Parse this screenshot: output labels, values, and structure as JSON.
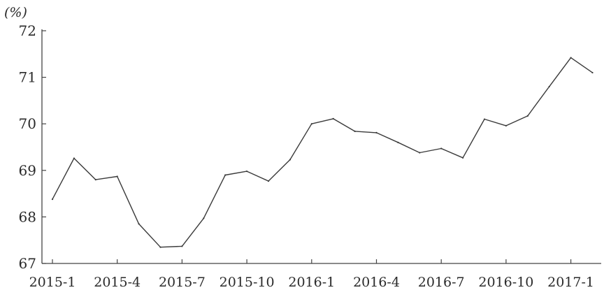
{
  "chart_data": {
    "type": "line",
    "ylabel": "(%)",
    "ylim": [
      67,
      72
    ],
    "yticks": [
      "67",
      "68",
      "69",
      "70",
      "71",
      "72"
    ],
    "x": [
      "2015-1",
      "2015-2",
      "2015-3",
      "2015-4",
      "2015-5",
      "2015-6",
      "2015-7",
      "2015-8",
      "2015-9",
      "2015-10",
      "2015-11",
      "2015-12",
      "2016-1",
      "2016-2",
      "2016-3",
      "2016-4",
      "2016-5",
      "2016-6",
      "2016-7",
      "2016-8",
      "2016-9",
      "2016-10",
      "2016-11",
      "2016-12",
      "2017-1",
      "2017-2"
    ],
    "xticks": [
      "2015-1",
      "2015-4",
      "2015-7",
      "2015-10",
      "2016-1",
      "2016-4",
      "2016-7",
      "2016-10",
      "2017-1"
    ],
    "series": [
      {
        "values": [
          68.38,
          69.26,
          68.8,
          68.87,
          67.85,
          67.35,
          67.37,
          67.97,
          68.9,
          68.98,
          68.77,
          69.23,
          70.0,
          70.11,
          69.84,
          69.81,
          69.6,
          69.38,
          69.47,
          69.27,
          70.1,
          69.96,
          70.17,
          70.8,
          71.42,
          71.1
        ]
      }
    ],
    "grid": false,
    "legend": "none"
  }
}
